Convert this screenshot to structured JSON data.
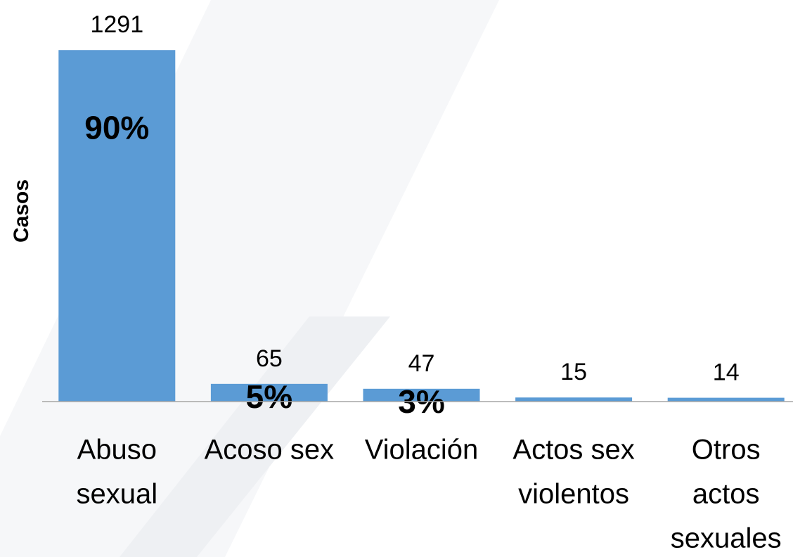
{
  "chart_data": {
    "type": "bar",
    "y_label": "Casos",
    "categories": [
      [
        "Abuso",
        "sexual"
      ],
      [
        "Acoso sex"
      ],
      [
        "Violación"
      ],
      [
        "Actos sex",
        "violentos"
      ],
      [
        "Otros",
        "actos",
        "sexuales"
      ]
    ],
    "values": [
      1291,
      65,
      47,
      15,
      14
    ],
    "percent_labels": [
      "90%",
      "5%",
      "3%"
    ],
    "color": "#5b9bd5",
    "ylim": [
      0,
      1400
    ]
  }
}
